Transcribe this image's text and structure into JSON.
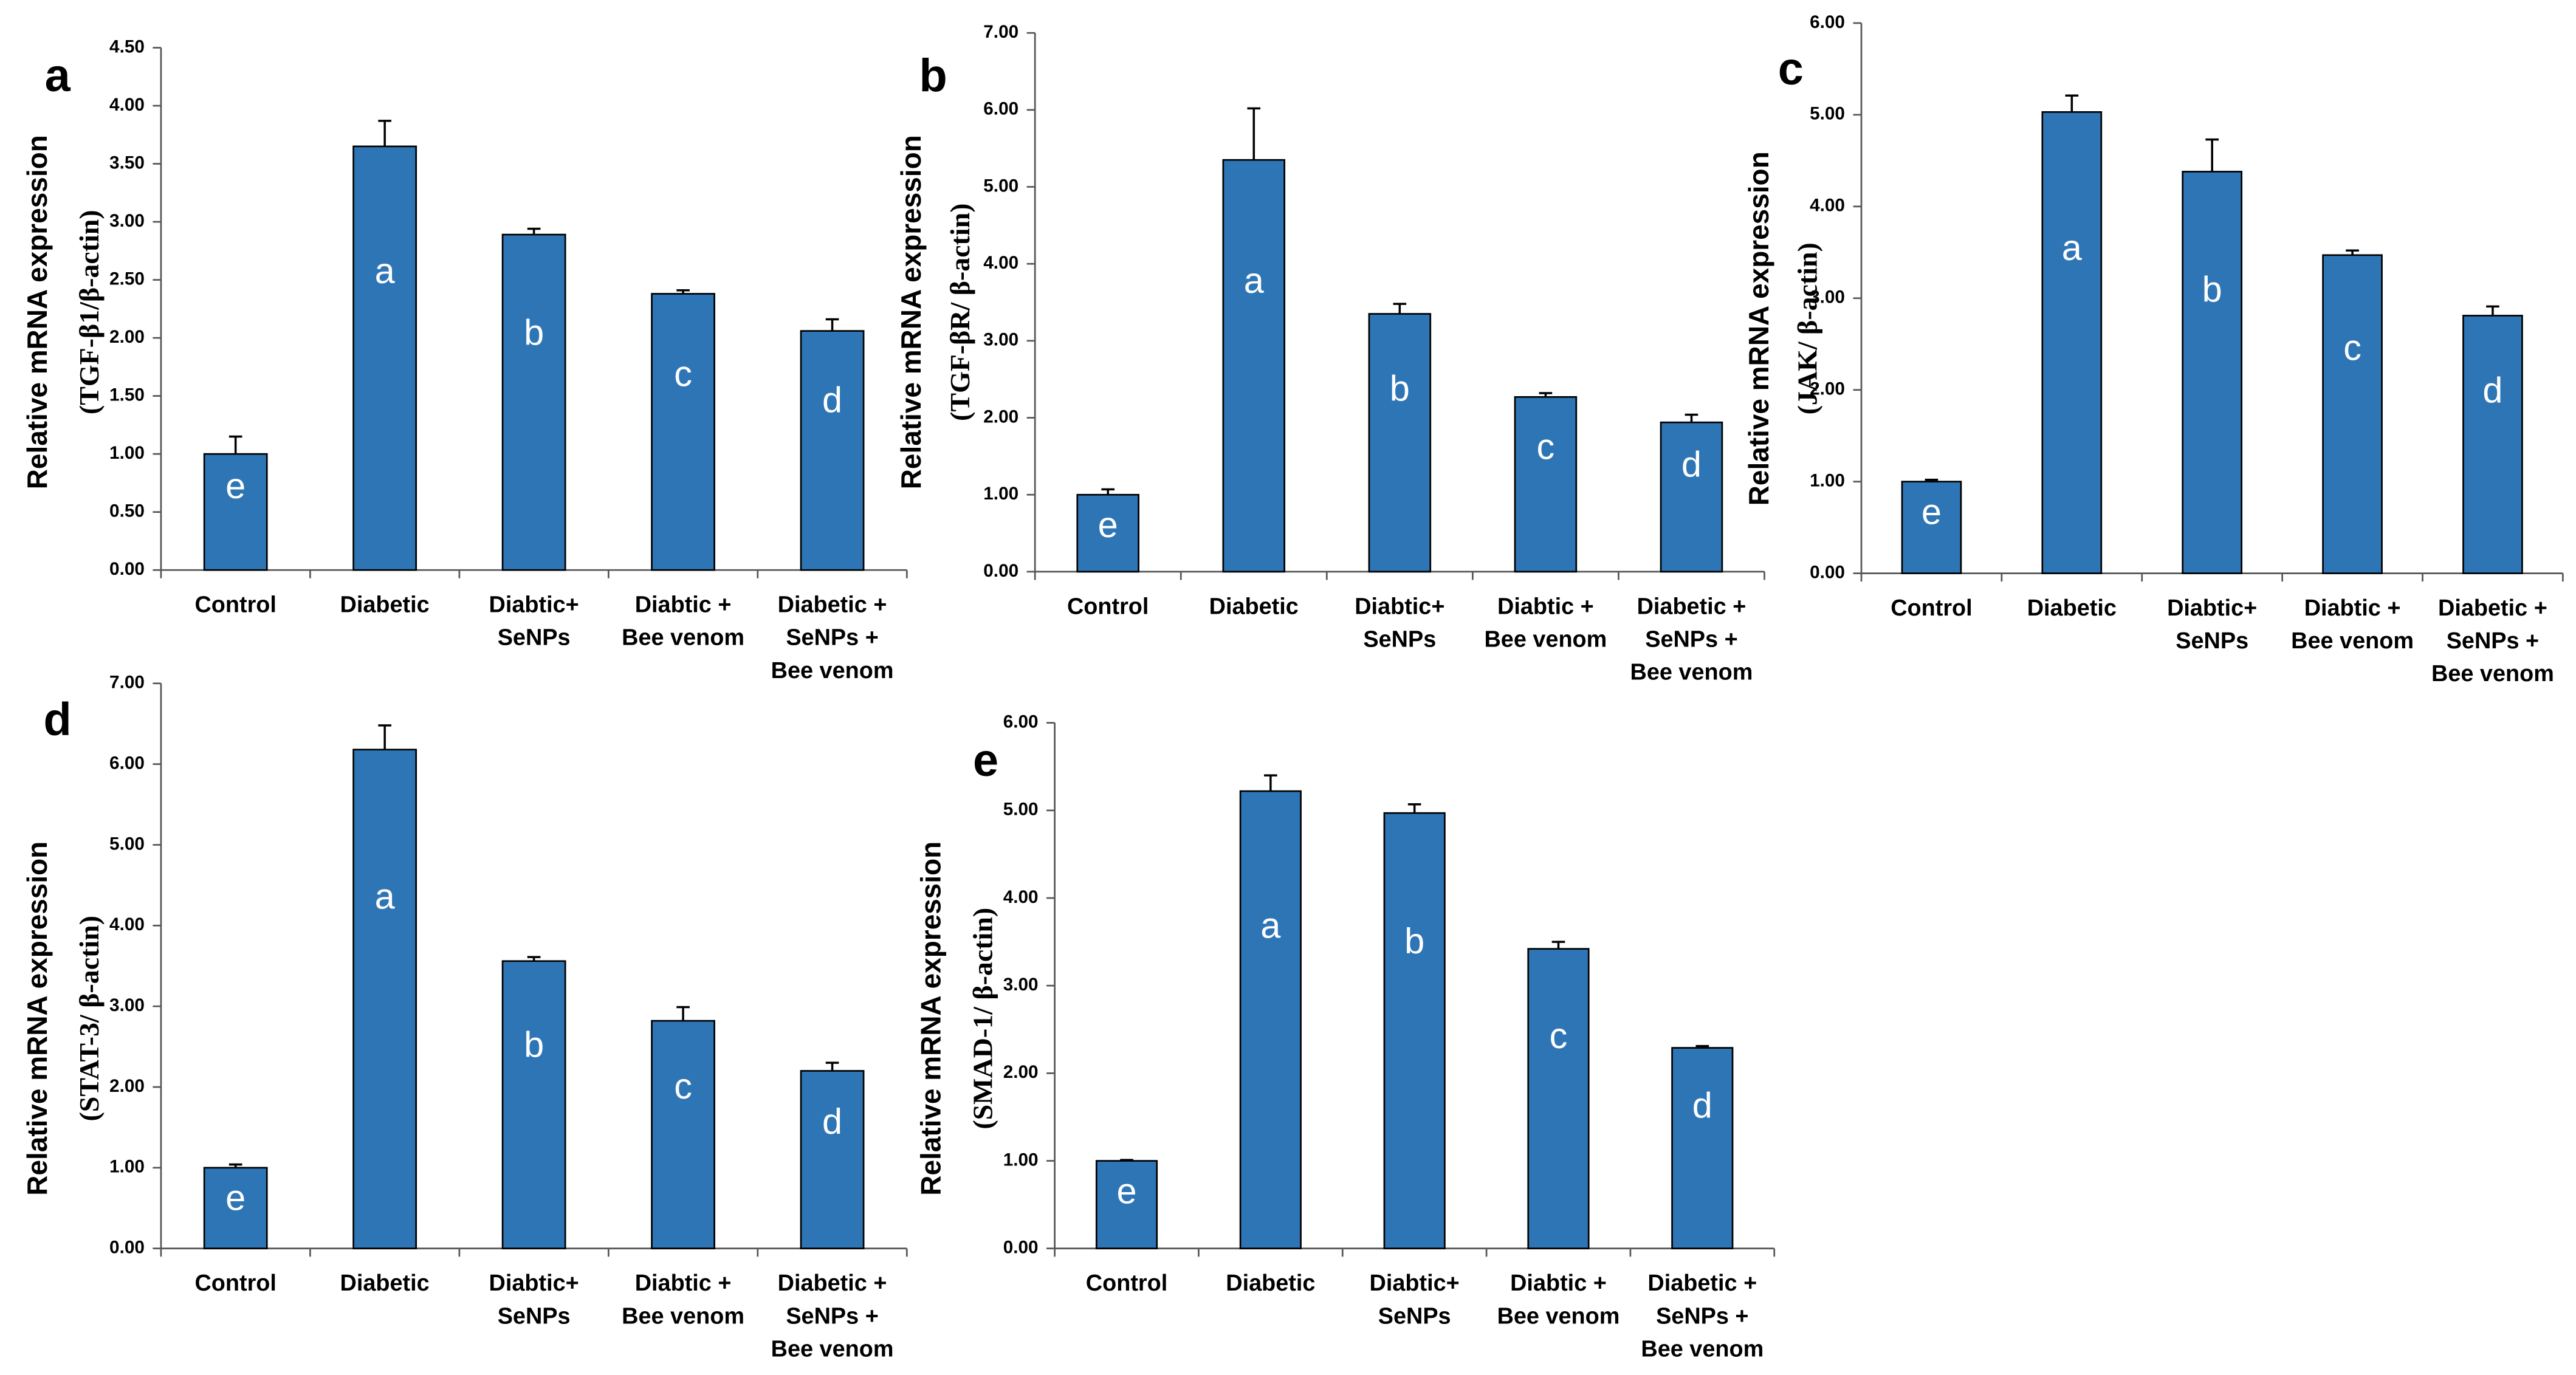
{
  "chart_data": [
    {
      "type": "bar",
      "panel": "a",
      "y_label": [
        "Relative mRNA expression",
        "(TGF-β1/β-actin)"
      ],
      "categories": [
        [
          "Control"
        ],
        [
          "Diabetic"
        ],
        [
          "Diabtic+",
          "SeNPs"
        ],
        [
          "Diabtic +",
          "Bee venom"
        ],
        [
          "Diabetic +",
          "SeNPs +",
          "Bee venom"
        ]
      ],
      "values": [
        1.0,
        3.65,
        2.89,
        2.38,
        2.06
      ],
      "errors": [
        0.15,
        0.22,
        0.05,
        0.03,
        0.1
      ],
      "letters": [
        "e",
        "a",
        "b",
        "c",
        "d"
      ],
      "color": "#2e75b6",
      "ylim": [
        0,
        4.5
      ],
      "yticks": [
        {
          "value": 0,
          "label": "0.00"
        },
        {
          "value": 0.5,
          "label": "0.50"
        },
        {
          "value": 1,
          "label": "1.00"
        },
        {
          "value": 1.5,
          "label": "1.50"
        },
        {
          "value": 2,
          "label": "2.00"
        },
        {
          "value": 2.5,
          "label": "2.50"
        },
        {
          "value": 3,
          "label": "3.00"
        },
        {
          "value": 3.5,
          "label": "3.50"
        },
        {
          "value": 4,
          "label": "4.00"
        },
        {
          "value": 4.5,
          "label": "4.50"
        }
      ]
    },
    {
      "type": "bar",
      "panel": "b",
      "y_label": [
        "Relative mRNA expression",
        "(TGF-βR/ β-actin)"
      ],
      "categories": [
        [
          "Control"
        ],
        [
          "Diabetic"
        ],
        [
          "Diabtic+",
          "SeNPs"
        ],
        [
          "Diabtic +",
          "Bee venom"
        ],
        [
          "Diabetic +",
          "SeNPs +",
          "Bee venom"
        ]
      ],
      "values": [
        1.0,
        5.35,
        3.35,
        2.27,
        1.94
      ],
      "errors": [
        0.07,
        0.67,
        0.13,
        0.05,
        0.1
      ],
      "letters": [
        "e",
        "a",
        "b",
        "c",
        "d"
      ],
      "color": "#2e75b6",
      "ylim": [
        0,
        7
      ],
      "yticks": [
        {
          "value": 0,
          "label": "0.00"
        },
        {
          "value": 1,
          "label": "1.00"
        },
        {
          "value": 2,
          "label": "2.00"
        },
        {
          "value": 3,
          "label": "3.00"
        },
        {
          "value": 4,
          "label": "4.00"
        },
        {
          "value": 5,
          "label": "5.00"
        },
        {
          "value": 6,
          "label": "6.00"
        },
        {
          "value": 7,
          "label": "7.00"
        }
      ]
    },
    {
      "type": "bar",
      "panel": "c",
      "y_label": [
        "Relative mRNA expression",
        "(JAK/ β-actin)"
      ],
      "categories": [
        [
          "Control"
        ],
        [
          "Diabetic"
        ],
        [
          "Diabtic+",
          "SeNPs"
        ],
        [
          "Diabtic +",
          "Bee venom"
        ],
        [
          "Diabetic +",
          "SeNPs +",
          "Bee venom"
        ]
      ],
      "values": [
        1.0,
        5.03,
        4.38,
        3.47,
        2.81
      ],
      "errors": [
        0.02,
        0.18,
        0.35,
        0.05,
        0.1
      ],
      "letters": [
        "e",
        "a",
        "b",
        "c",
        "d"
      ],
      "color": "#2e75b6",
      "ylim": [
        0,
        6
      ],
      "yticks": [
        {
          "value": 0,
          "label": "0.00"
        },
        {
          "value": 1,
          "label": "1.00"
        },
        {
          "value": 2,
          "label": "2.00"
        },
        {
          "value": 3,
          "label": "3.00"
        },
        {
          "value": 4,
          "label": "4.00"
        },
        {
          "value": 5,
          "label": "5.00"
        },
        {
          "value": 6,
          "label": "6.00"
        }
      ]
    },
    {
      "type": "bar",
      "panel": "d",
      "y_label": [
        "Relative mRNA expression",
        "(STAT-3/ β-actin)"
      ],
      "categories": [
        [
          "Control"
        ],
        [
          "Diabetic"
        ],
        [
          "Diabtic+",
          "SeNPs"
        ],
        [
          "Diabtic +",
          "Bee venom"
        ],
        [
          "Diabetic +",
          "SeNPs +",
          "Bee venom"
        ]
      ],
      "values": [
        1.0,
        6.18,
        3.56,
        2.82,
        2.2
      ],
      "errors": [
        0.04,
        0.3,
        0.05,
        0.17,
        0.1
      ],
      "letters": [
        "e",
        "a",
        "b",
        "c",
        "d"
      ],
      "color": "#2e75b6",
      "ylim": [
        0,
        7
      ],
      "yticks": [
        {
          "value": 0,
          "label": "0.00"
        },
        {
          "value": 1,
          "label": "1.00"
        },
        {
          "value": 2,
          "label": "2.00"
        },
        {
          "value": 3,
          "label": "3.00"
        },
        {
          "value": 4,
          "label": "4.00"
        },
        {
          "value": 5,
          "label": "5.00"
        },
        {
          "value": 6,
          "label": "6.00"
        },
        {
          "value": 7,
          "label": "7.00"
        }
      ]
    },
    {
      "type": "bar",
      "panel": "e",
      "y_label": [
        "Relative mRNA expression",
        "(SMAD-1/ β-actin)"
      ],
      "categories": [
        [
          "Control"
        ],
        [
          "Diabetic"
        ],
        [
          "Diabtic+",
          "SeNPs"
        ],
        [
          "Diabtic +",
          "Bee venom"
        ],
        [
          "Diabetic +",
          "SeNPs +",
          "Bee venom"
        ]
      ],
      "values": [
        1.0,
        5.22,
        4.97,
        3.42,
        2.29
      ],
      "errors": [
        0.01,
        0.18,
        0.1,
        0.08,
        0.02
      ],
      "letters": [
        "e",
        "a",
        "b",
        "c",
        "d"
      ],
      "color": "#2e75b6",
      "ylim": [
        0,
        6
      ],
      "yticks": [
        {
          "value": 0,
          "label": "0.00"
        },
        {
          "value": 1,
          "label": "1.00"
        },
        {
          "value": 2,
          "label": "2.00"
        },
        {
          "value": 3,
          "label": "3.00"
        },
        {
          "value": 4,
          "label": "4.00"
        },
        {
          "value": 5,
          "label": "5.00"
        },
        {
          "value": 6,
          "label": "6.00"
        }
      ]
    }
  ]
}
